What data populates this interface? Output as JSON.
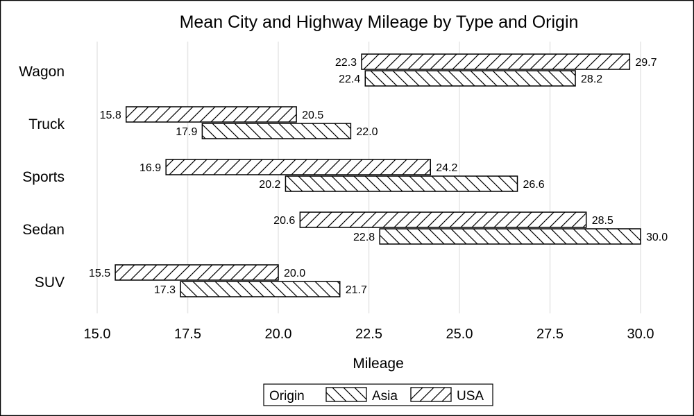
{
  "chart_data": {
    "type": "bar",
    "orientation": "horizontal-range",
    "title": "Mean City and Highway Mileage by Type and Origin",
    "xlabel": "Mileage",
    "ylabel": "",
    "xlim": [
      15.0,
      30.0
    ],
    "xticks": [
      "15.0",
      "17.5",
      "20.0",
      "22.5",
      "25.0",
      "27.5",
      "30.0"
    ],
    "grid": true,
    "categories": [
      "Wagon",
      "Truck",
      "Sports",
      "Sedan",
      "SUV"
    ],
    "series": [
      {
        "name": "USA",
        "pattern": "forward-hatch",
        "low": [
          22.3,
          15.8,
          16.9,
          20.6,
          15.5
        ],
        "high": [
          29.7,
          20.5,
          24.2,
          28.5,
          20.0
        ]
      },
      {
        "name": "Asia",
        "pattern": "backward-hatch",
        "low": [
          22.4,
          17.9,
          20.2,
          22.8,
          17.3
        ],
        "high": [
          28.2,
          22.0,
          26.6,
          30.0,
          21.7
        ]
      }
    ],
    "legend": {
      "title": "Origin",
      "placement": "bottom-center",
      "order": [
        "Asia",
        "USA"
      ]
    }
  }
}
